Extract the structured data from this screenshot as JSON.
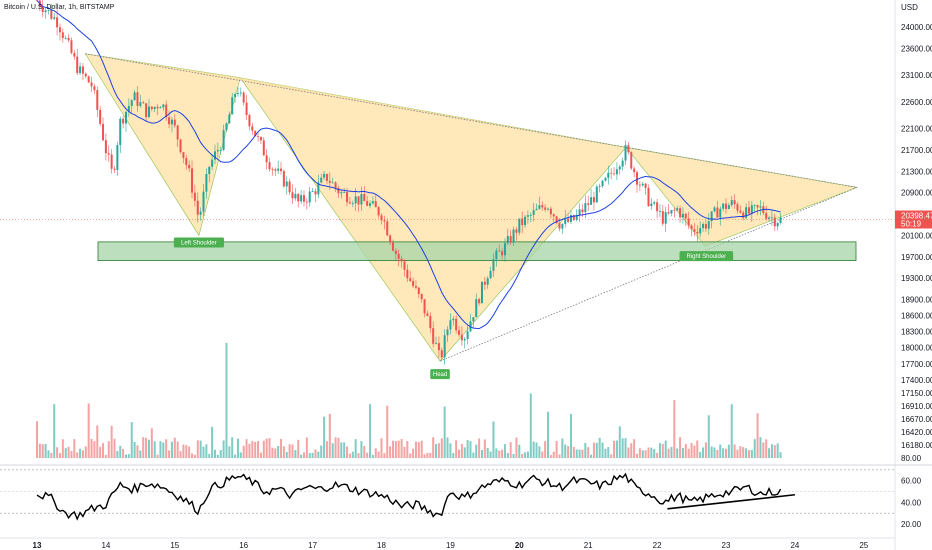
{
  "header": {
    "title": "Bitcoin / U.S. Dollar, 1h, BITSTAMP"
  },
  "colors": {
    "up": "#26a69a",
    "down": "#ef5350",
    "ma": "#1e40e6",
    "pattern_fill": "#ffe0a3",
    "pattern_stroke": "#8bc34a",
    "zone_fill": "#a5d6a7",
    "zone_stroke": "#2e7d32",
    "label_bg": "#4caf50",
    "price_tag": "#ef5350",
    "vol_up": "#80cbc4",
    "vol_down": "#f4a3a3"
  },
  "chart_data": [
    {
      "type": "candlestick",
      "title": "Bitcoin / U.S. Dollar, 1h, BITSTAMP",
      "y_axis_label": "USD",
      "y_ticks": [
        "24000.00",
        "23600.00",
        "23100.00",
        "22600.00",
        "22100.00",
        "21700.00",
        "21300.00",
        "20900.00",
        "20500.00",
        "20100.00",
        "19700.00",
        "19300.00",
        "18900.00",
        "18600.00",
        "18300.00",
        "18000.00",
        "17700.00",
        "17400.00",
        "17150.00",
        "16910.00",
        "16670.00",
        "16420.00",
        "16180.00"
      ],
      "y_ticks_values": [
        24000,
        23600,
        23100,
        22600,
        22100,
        21700,
        21300,
        20900,
        20500,
        20100,
        19700,
        19300,
        18900,
        18600,
        18300,
        18000,
        17700,
        17400,
        17150,
        16910,
        16670,
        16420,
        16180
      ],
      "x_ticks": [
        "13",
        "14",
        "15",
        "16",
        "17",
        "18",
        "19",
        "20",
        "21",
        "22",
        "23",
        "24",
        "25"
      ],
      "x_ticks_bold": [
        "13",
        "20"
      ],
      "current_price": {
        "price": "20398.47",
        "countdown": "50:19",
        "value": 20398.47
      },
      "price_path": [
        [
          13.0,
          24500
        ],
        [
          13.3,
          24100
        ],
        [
          13.6,
          23200
        ],
        [
          13.8,
          22900
        ],
        [
          14.0,
          21700
        ],
        [
          14.1,
          21200
        ],
        [
          14.2,
          22200
        ],
        [
          14.4,
          22700
        ],
        [
          14.6,
          22400
        ],
        [
          14.8,
          22600
        ],
        [
          15.0,
          22100
        ],
        [
          15.2,
          21300
        ],
        [
          15.35,
          20400
        ],
        [
          15.5,
          21400
        ],
        [
          15.7,
          21900
        ],
        [
          15.9,
          22900
        ],
        [
          16.0,
          22500
        ],
        [
          16.2,
          21900
        ],
        [
          16.4,
          21400
        ],
        [
          16.6,
          21100
        ],
        [
          16.8,
          20700
        ],
        [
          17.0,
          20900
        ],
        [
          17.2,
          21200
        ],
        [
          17.4,
          20900
        ],
        [
          17.6,
          20800
        ],
        [
          17.8,
          20700
        ],
        [
          18.0,
          20500
        ],
        [
          18.2,
          19800
        ],
        [
          18.4,
          19300
        ],
        [
          18.6,
          18800
        ],
        [
          18.8,
          18000
        ],
        [
          18.85,
          17750
        ],
        [
          19.0,
          18600
        ],
        [
          19.2,
          18200
        ],
        [
          19.4,
          18900
        ],
        [
          19.6,
          19600
        ],
        [
          19.8,
          19900
        ],
        [
          20.0,
          20300
        ],
        [
          20.2,
          20500
        ],
        [
          20.4,
          20700
        ],
        [
          20.6,
          20300
        ],
        [
          20.8,
          20400
        ],
        [
          21.0,
          20700
        ],
        [
          21.2,
          21000
        ],
        [
          21.4,
          21400
        ],
        [
          21.55,
          21700
        ],
        [
          21.7,
          21200
        ],
        [
          21.9,
          20700
        ],
        [
          22.1,
          20400
        ],
        [
          22.3,
          20600
        ],
        [
          22.5,
          20200
        ],
        [
          22.7,
          20300
        ],
        [
          22.9,
          20600
        ],
        [
          23.1,
          20700
        ],
        [
          23.3,
          20500
        ],
        [
          23.5,
          20600
        ],
        [
          23.7,
          20400
        ],
        [
          23.8,
          20398
        ]
      ],
      "volume": {
        "axis_tick": "80.00",
        "spike_day": 15.75
      }
    },
    {
      "type": "line",
      "title": "",
      "y_ticks": [
        "60.00",
        "40.00",
        "20.00"
      ],
      "y_ticks_values": [
        60,
        40,
        20
      ],
      "ylim": [
        10,
        85
      ],
      "series": [
        {
          "values": [
            [
              13.0,
              48
            ],
            [
              13.2,
              44
            ],
            [
              13.4,
              30
            ],
            [
              13.6,
              28
            ],
            [
              13.8,
              34
            ],
            [
              14.0,
              38
            ],
            [
              14.2,
              56
            ],
            [
              14.4,
              52
            ],
            [
              14.6,
              58
            ],
            [
              14.8,
              55
            ],
            [
              15.0,
              48
            ],
            [
              15.2,
              40
            ],
            [
              15.35,
              32
            ],
            [
              15.5,
              52
            ],
            [
              15.7,
              58
            ],
            [
              15.9,
              64
            ],
            [
              16.1,
              60
            ],
            [
              16.3,
              50
            ],
            [
              16.5,
              52
            ],
            [
              16.7,
              46
            ],
            [
              16.9,
              54
            ],
            [
              17.1,
              52
            ],
            [
              17.3,
              56
            ],
            [
              17.5,
              54
            ],
            [
              17.7,
              50
            ],
            [
              17.9,
              48
            ],
            [
              18.1,
              44
            ],
            [
              18.3,
              36
            ],
            [
              18.5,
              38
            ],
            [
              18.7,
              32
            ],
            [
              18.85,
              28
            ],
            [
              19.0,
              50
            ],
            [
              19.2,
              44
            ],
            [
              19.4,
              52
            ],
            [
              19.6,
              58
            ],
            [
              19.8,
              60
            ],
            [
              20.0,
              56
            ],
            [
              20.2,
              62
            ],
            [
              20.4,
              58
            ],
            [
              20.6,
              54
            ],
            [
              20.8,
              60
            ],
            [
              21.0,
              58
            ],
            [
              21.2,
              55
            ],
            [
              21.4,
              62
            ],
            [
              21.55,
              64
            ],
            [
              21.7,
              52
            ],
            [
              21.9,
              48
            ],
            [
              22.1,
              40
            ],
            [
              22.3,
              46
            ],
            [
              22.5,
              40
            ],
            [
              22.7,
              44
            ],
            [
              22.9,
              48
            ],
            [
              23.1,
              50
            ],
            [
              23.3,
              54
            ],
            [
              23.5,
              48
            ],
            [
              23.7,
              50
            ],
            [
              23.8,
              50
            ]
          ]
        }
      ]
    }
  ],
  "annotations": {
    "left_shoulder": "Left Shoulder",
    "head": "Head",
    "right_shoulder": "Right Shoulder"
  }
}
